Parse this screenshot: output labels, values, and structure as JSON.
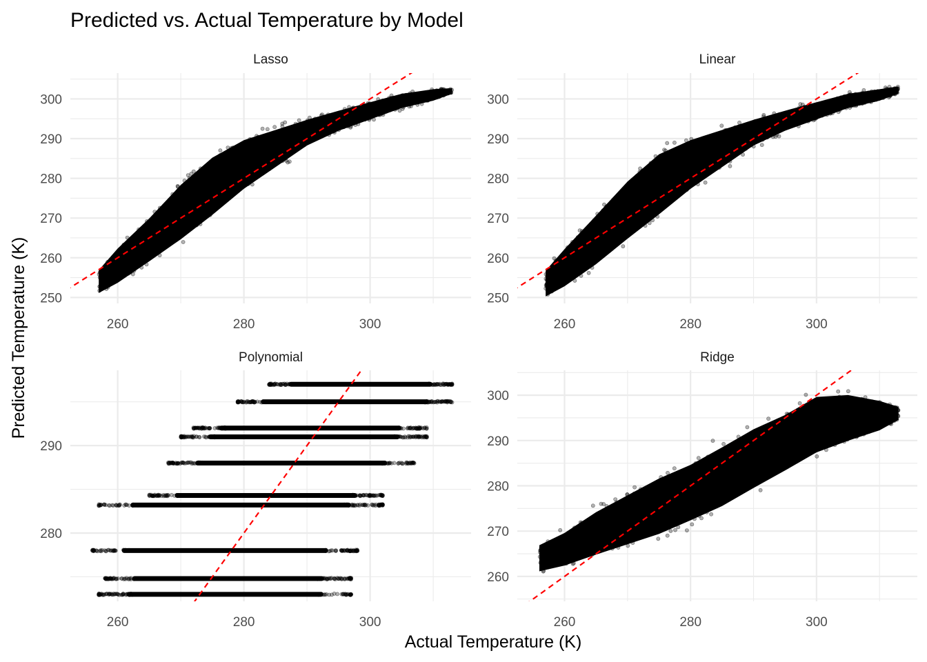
{
  "chart_data": {
    "type": "scatter",
    "title": "Predicted vs. Actual Temperature by Model",
    "xlabel": "Actual Temperature (K)",
    "ylabel": "Predicted Temperature (K)",
    "grid": true,
    "reference_line": {
      "slope": 1,
      "intercept": 0,
      "color": "#ff0000",
      "style": "dashed"
    },
    "point_color": "#000000",
    "point_alpha": 0.3,
    "panels": [
      {
        "name": "Lasso",
        "xlim": [
          252.5,
          316
        ],
        "ylim": [
          248.5,
          306.5
        ],
        "x_ticks": [
          260,
          280,
          300
        ],
        "y_ticks": [
          250,
          260,
          270,
          280,
          290,
          300
        ],
        "kind": "band",
        "band": [
          {
            "x": 257,
            "low": 250,
            "high": 258
          },
          {
            "x": 260,
            "low": 252,
            "high": 264
          },
          {
            "x": 265,
            "low": 257,
            "high": 272
          },
          {
            "x": 270,
            "low": 262,
            "high": 281
          },
          {
            "x": 275,
            "low": 268,
            "high": 288
          },
          {
            "x": 280,
            "low": 275,
            "high": 292
          },
          {
            "x": 285,
            "low": 281,
            "high": 294
          },
          {
            "x": 290,
            "low": 287,
            "high": 296
          },
          {
            "x": 295,
            "low": 291,
            "high": 298
          },
          {
            "x": 300,
            "low": 294,
            "high": 300
          },
          {
            "x": 305,
            "low": 297,
            "high": 302
          },
          {
            "x": 310,
            "low": 299,
            "high": 303
          },
          {
            "x": 313,
            "low": 301,
            "high": 303
          }
        ]
      },
      {
        "name": "Linear",
        "xlim": [
          252.5,
          316
        ],
        "ylim": [
          248.5,
          306.5
        ],
        "x_ticks": [
          260,
          280,
          300
        ],
        "y_ticks": [
          250,
          260,
          270,
          280,
          290,
          300
        ],
        "kind": "band",
        "band": [
          {
            "x": 257,
            "low": 249,
            "high": 258
          },
          {
            "x": 260,
            "low": 251,
            "high": 264
          },
          {
            "x": 265,
            "low": 256,
            "high": 273
          },
          {
            "x": 270,
            "low": 262,
            "high": 282
          },
          {
            "x": 275,
            "low": 268,
            "high": 289
          },
          {
            "x": 280,
            "low": 275,
            "high": 292
          },
          {
            "x": 285,
            "low": 281,
            "high": 294
          },
          {
            "x": 290,
            "low": 287,
            "high": 296
          },
          {
            "x": 295,
            "low": 291,
            "high": 298
          },
          {
            "x": 300,
            "low": 294,
            "high": 300
          },
          {
            "x": 305,
            "low": 297,
            "high": 302
          },
          {
            "x": 310,
            "low": 299,
            "high": 303
          },
          {
            "x": 313,
            "low": 301,
            "high": 303.5
          }
        ]
      },
      {
        "name": "Polynomial",
        "xlim": [
          252.5,
          316
        ],
        "ylim": [
          272.2,
          298.6
        ],
        "x_ticks": [
          260,
          280,
          300
        ],
        "y_ticks": [
          280,
          290
        ],
        "kind": "levels",
        "levels": [
          {
            "y": 297,
            "x_min": 284,
            "x_max": 313
          },
          {
            "y": 295,
            "x_min": 279,
            "x_max": 313
          },
          {
            "y": 292,
            "x_min": 272,
            "x_max": 309
          },
          {
            "y": 291,
            "x_min": 270,
            "x_max": 309
          },
          {
            "y": 288,
            "x_min": 268,
            "x_max": 307
          },
          {
            "y": 284.3,
            "x_min": 265,
            "x_max": 302
          },
          {
            "y": 283.2,
            "x_min": 257,
            "x_max": 302
          },
          {
            "y": 278,
            "x_min": 256,
            "x_max": 298
          },
          {
            "y": 274.8,
            "x_min": 258,
            "x_max": 297
          },
          {
            "y": 273,
            "x_min": 257,
            "x_max": 297
          }
        ]
      },
      {
        "name": "Ridge",
        "xlim": [
          252.5,
          316
        ],
        "ylim": [
          254.5,
          305.5
        ],
        "x_ticks": [
          260,
          280,
          300
        ],
        "y_ticks": [
          260,
          270,
          280,
          290,
          300
        ],
        "kind": "band",
        "band": [
          {
            "x": 256,
            "low": 260,
            "high": 268
          },
          {
            "x": 260,
            "low": 261,
            "high": 271
          },
          {
            "x": 265,
            "low": 263,
            "high": 276
          },
          {
            "x": 270,
            "low": 265,
            "high": 280
          },
          {
            "x": 275,
            "low": 267,
            "high": 284
          },
          {
            "x": 280,
            "low": 270,
            "high": 287
          },
          {
            "x": 285,
            "low": 273,
            "high": 291
          },
          {
            "x": 290,
            "low": 277,
            "high": 295
          },
          {
            "x": 295,
            "low": 281,
            "high": 298
          },
          {
            "x": 300,
            "low": 285,
            "high": 302
          },
          {
            "x": 305,
            "low": 288,
            "high": 302
          },
          {
            "x": 310,
            "low": 291,
            "high": 300
          },
          {
            "x": 313,
            "low": 294,
            "high": 298
          }
        ]
      }
    ]
  }
}
